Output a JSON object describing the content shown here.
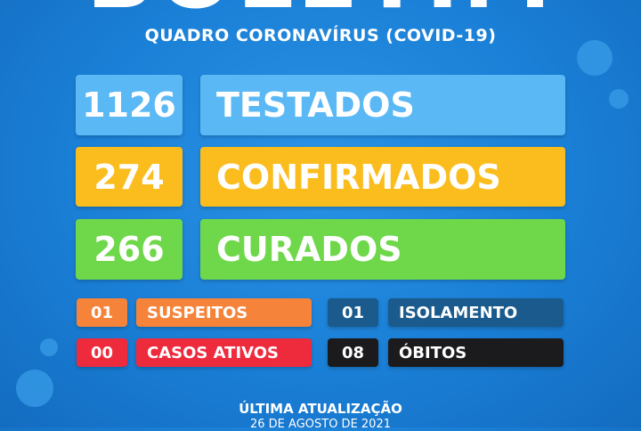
{
  "header": {
    "title": "BOLETIM",
    "subtitle": "QUADRO CORONAVÍRUS (COVID-19)"
  },
  "main": [
    {
      "value": "1126",
      "label": "TESTADOS",
      "color": "#5ab8f5"
    },
    {
      "value": "274",
      "label": "CONFIRMADOS",
      "color": "#fbbd1e"
    },
    {
      "value": "266",
      "label": "CURADOS",
      "color": "#6ed84a"
    }
  ],
  "secondary": [
    {
      "value": "01",
      "label": "SUSPEITOS",
      "color": "#f5833a"
    },
    {
      "value": "01",
      "label": "ISOLAMENTO",
      "color": "#1a5a8c"
    },
    {
      "value": "00",
      "label": "CASOS ATIVOS",
      "color": "#ee2a3d"
    },
    {
      "value": "08",
      "label": "ÓBITOS",
      "color": "#1b1b1d"
    }
  ],
  "footer": {
    "label": "ÚLTIMA ATUALIZAÇÃO",
    "date": "26 DE AGOSTO DE 2021"
  }
}
